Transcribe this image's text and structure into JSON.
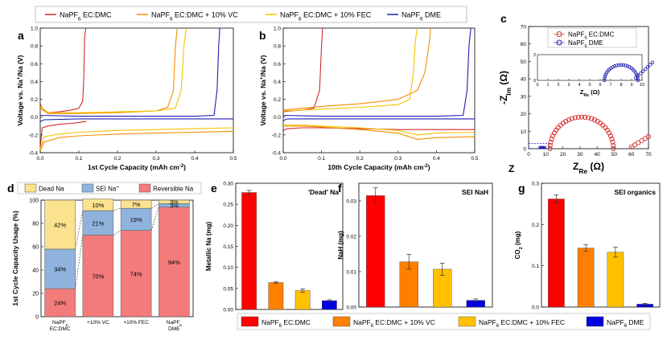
{
  "figure": {
    "colors": {
      "ecdmc": "#d62728",
      "vc": "#f28e00",
      "fec": "#f5c400",
      "dme": "#1f1fb4",
      "dead": "#fbe28f",
      "sei": "#8fb3dc",
      "rev": "#f47b7b",
      "bar_red": "#ff0000",
      "bar_orange": "#ff7f00",
      "bar_yellow": "#ffc000",
      "bar_blue": "#0000e0"
    },
    "top_legend": {
      "items": [
        {
          "label": "NaPF",
          "sub": "6",
          "rest": " EC:DMC"
        },
        {
          "label": "NaPF",
          "sub": "6",
          "rest": " EC:DMC + 10% VC"
        },
        {
          "label": "NaPF",
          "sub": "6",
          "rest": " EC:DMC + 10% FEC"
        },
        {
          "label": "NaPF",
          "sub": "6",
          "rest": " DME"
        }
      ]
    },
    "bottom_legend": {
      "items": [
        {
          "label": "NaPF",
          "sub": "6",
          "rest": " EC:DMC"
        },
        {
          "label": "NaPF",
          "sub": "6",
          "rest": " EC:DMC + 10% VC"
        },
        {
          "label": "NaPF",
          "sub": "6",
          "rest": " EC:DMC + 10% FEC"
        },
        {
          "label": "NaPF",
          "sub": "6",
          "rest": " DME"
        }
      ]
    }
  },
  "chart_data": [
    {
      "panel": "a",
      "type": "line",
      "xlabel": "1st Cycle Capacity (mAh cm",
      "xlabel_sup": "-2",
      "xlabel_end": ")",
      "ylabel": "Voltage vs. Na",
      "ylabel_sup": "+",
      "ylabel_end": "/Na (V)",
      "xlim": [
        0,
        0.5
      ],
      "ylim": [
        -0.4,
        1.0
      ],
      "xticks": [
        "0.0",
        "0.1",
        "0.2",
        "0.3",
        "0.4",
        "0.5"
      ],
      "yticks": [
        "-0.4",
        "-0.2",
        "0.0",
        "0.2",
        "0.4",
        "0.6",
        "0.8",
        "1.0"
      ],
      "series": [
        {
          "name": "NaPF6 EC:DMC",
          "color": "#d62728",
          "x": [
            0,
            0.005,
            0.02,
            0.05,
            0.08,
            0.1,
            0.115,
            0.12
          ],
          "y": [
            -0.35,
            -0.12,
            -0.1,
            -0.08,
            -0.07,
            -0.06,
            -0.05,
            -0.05
          ],
          "x2": [
            0,
            0.005,
            0.02,
            0.05,
            0.08,
            0.1,
            0.11,
            0.113,
            0.115,
            0.118
          ],
          "y2": [
            0.15,
            0.1,
            0.05,
            0.06,
            0.08,
            0.1,
            0.18,
            0.45,
            0.9,
            1.0
          ]
        },
        {
          "name": "NaPF6 EC:DMC + 10% VC",
          "color": "#f28e00",
          "x": [
            0,
            0.01,
            0.05,
            0.1,
            0.2,
            0.3,
            0.4,
            0.5
          ],
          "y": [
            -0.38,
            -0.28,
            -0.23,
            -0.21,
            -0.19,
            -0.18,
            -0.17,
            -0.16
          ],
          "x2": [
            0,
            0.02,
            0.1,
            0.2,
            0.3,
            0.33,
            0.345,
            0.35,
            0.355
          ],
          "y2": [
            0.1,
            0.04,
            0.04,
            0.05,
            0.07,
            0.11,
            0.3,
            0.8,
            1.0
          ]
        },
        {
          "name": "NaPF6 EC:DMC + 10% FEC",
          "color": "#f5c400",
          "x": [
            0,
            0.01,
            0.05,
            0.1,
            0.2,
            0.3,
            0.4,
            0.5
          ],
          "y": [
            -0.36,
            -0.22,
            -0.19,
            -0.17,
            -0.15,
            -0.14,
            -0.13,
            -0.12
          ],
          "x2": [
            0,
            0.02,
            0.1,
            0.2,
            0.3,
            0.35,
            0.365,
            0.372,
            0.378
          ],
          "y2": [
            0.12,
            0.05,
            0.05,
            0.06,
            0.07,
            0.1,
            0.3,
            0.8,
            1.0
          ]
        },
        {
          "name": "NaPF6 DME",
          "color": "#1f1fb4",
          "x": [
            0,
            0.01,
            0.1,
            0.2,
            0.3,
            0.4,
            0.5
          ],
          "y": [
            -0.05,
            -0.03,
            -0.02,
            -0.02,
            -0.02,
            -0.02,
            -0.02
          ],
          "x2": [
            0,
            0.1,
            0.2,
            0.3,
            0.4,
            0.45,
            0.458,
            0.462,
            0.465
          ],
          "y2": [
            0.02,
            0.01,
            0.01,
            0.01,
            0.01,
            0.02,
            0.3,
            0.8,
            1.0
          ]
        }
      ]
    },
    {
      "panel": "b",
      "type": "line",
      "xlabel": "10th Cycle Capacity (mAh cm",
      "xlabel_sup": "-2",
      "xlabel_end": ")",
      "ylabel": "Voltage vs. Na",
      "ylabel_sup": "+",
      "ylabel_end": "/Na (V)",
      "xlim": [
        0,
        0.5
      ],
      "ylim": [
        -0.4,
        1.0
      ],
      "xticks": [
        "0.0",
        "0.1",
        "0.2",
        "0.3",
        "0.4",
        "0.5"
      ],
      "yticks": [
        "-0.4",
        "-0.2",
        "0.0",
        "0.2",
        "0.4",
        "0.6",
        "0.8",
        "1.0"
      ],
      "series": [
        {
          "name": "NaPF6 EC:DMC",
          "color": "#d62728",
          "x": [
            0,
            0.01,
            0.05,
            0.1,
            0.2,
            0.3,
            0.4,
            0.5
          ],
          "y": [
            -0.15,
            -0.13,
            -0.12,
            -0.12,
            -0.13,
            -0.14,
            -0.14,
            -0.14
          ],
          "x2": [
            0,
            0.02,
            0.05,
            0.08,
            0.095,
            0.1,
            0.103
          ],
          "y2": [
            0.06,
            0.07,
            0.08,
            0.1,
            0.3,
            0.8,
            1.0
          ]
        },
        {
          "name": "NaPF6 EC:DMC + 10% VC",
          "color": "#f28e00",
          "x": [
            0,
            0.05,
            0.1,
            0.2,
            0.3,
            0.35,
            0.4,
            0.5
          ],
          "y": [
            -0.1,
            -0.1,
            -0.11,
            -0.14,
            -0.18,
            -0.25,
            -0.23,
            -0.22
          ],
          "x2": [
            0,
            0.05,
            0.1,
            0.2,
            0.3,
            0.35,
            0.37,
            0.38,
            0.385
          ],
          "y2": [
            0.08,
            0.1,
            0.12,
            0.15,
            0.2,
            0.3,
            0.5,
            0.8,
            1.0
          ]
        },
        {
          "name": "NaPF6 EC:DMC + 10% FEC",
          "color": "#f5c400",
          "x": [
            0,
            0.05,
            0.1,
            0.2,
            0.3,
            0.35,
            0.4,
            0.5
          ],
          "y": [
            -0.09,
            -0.09,
            -0.1,
            -0.12,
            -0.15,
            -0.2,
            -0.18,
            -0.17
          ],
          "x2": [
            0,
            0.05,
            0.1,
            0.2,
            0.3,
            0.33,
            0.34,
            0.345,
            0.35
          ],
          "y2": [
            0.07,
            0.08,
            0.09,
            0.11,
            0.14,
            0.2,
            0.5,
            0.85,
            1.0
          ]
        },
        {
          "name": "NaPF6 DME",
          "color": "#1f1fb4",
          "x": [
            0,
            0.01,
            0.1,
            0.2,
            0.3,
            0.4,
            0.5
          ],
          "y": [
            -0.04,
            -0.02,
            -0.02,
            -0.02,
            -0.02,
            -0.02,
            -0.02
          ],
          "x2": [
            0,
            0.1,
            0.2,
            0.3,
            0.4,
            0.47,
            0.48,
            0.485,
            0.49
          ],
          "y2": [
            0.02,
            0.01,
            0.01,
            0.01,
            0.01,
            0.02,
            0.3,
            0.8,
            1.0
          ]
        }
      ]
    },
    {
      "panel": "c",
      "type": "scatter",
      "xlabel": "Z",
      "xlabel_sub": "Re",
      "xlabel_end": " (Ω)",
      "ylabel": "-Z",
      "ylabel_sub": "Im",
      "ylabel_end": " (Ω)",
      "outside_label": "Z",
      "xlim": [
        0,
        70
      ],
      "ylim": [
        0,
        70
      ],
      "xticks": [
        "0",
        "10",
        "20",
        "30",
        "40",
        "50",
        "60",
        "70"
      ],
      "yticks": [
        "0",
        "10",
        "20",
        "30",
        "40",
        "50",
        "60",
        "70"
      ],
      "legend": [
        "NaPF6 EC:DMC",
        "NaPF6 DME"
      ],
      "series": [
        {
          "name": "NaPF6 EC:DMC",
          "color": "#d62728",
          "center": 31,
          "radius": 18.5,
          "tail_start": 60,
          "tail_end": 70
        },
        {
          "name": "NaPF6 DME",
          "color": "#1f1fb4",
          "center": 8,
          "radius": 1.6,
          "tail_start": 9.4,
          "tail_end": 11
        }
      ],
      "inset": {
        "xlabel": "Z",
        "xlabel_sub": "Re",
        "xlabel_end": " (Ω)",
        "xlim": [
          0,
          10
        ],
        "ylim": [
          0,
          2
        ],
        "xticks": [
          "0",
          "1",
          "2",
          "3",
          "4",
          "5",
          "6",
          "7",
          "8",
          "9",
          "10"
        ],
        "yticks": [
          "0",
          "2"
        ]
      }
    },
    {
      "panel": "d",
      "type": "bar",
      "stacked": true,
      "ylabel": "1st Cycle Capacity Usage (%)",
      "ylim": [
        0,
        100
      ],
      "yticks": [
        "0",
        "20",
        "40",
        "60",
        "80",
        "100"
      ],
      "categories": [
        {
          "line1": "NaPF",
          "sub": "6",
          "line2": "EC:DMC"
        },
        {
          "line1": "+10% VC",
          "sub": "",
          "line2": ""
        },
        {
          "line1": "+10% FEC",
          "sub": "",
          "line2": ""
        },
        {
          "line1": "NaPF",
          "sub": "6",
          "line2": "DME"
        }
      ],
      "legend": [
        "Dead Na",
        "SEI Na",
        "Reversible Na"
      ],
      "legend_sei_sup": "+",
      "series": [
        {
          "name": "Reversible Na",
          "values": [
            24,
            70,
            74,
            94
          ],
          "labels": [
            "24%",
            "70%",
            "74%",
            "94%"
          ]
        },
        {
          "name": "SEI Na+",
          "values": [
            34,
            21,
            19,
            3
          ],
          "labels": [
            "34%",
            "21%",
            "19%",
            "3%"
          ]
        },
        {
          "name": "Dead Na",
          "values": [
            42,
            10,
            7,
            3
          ],
          "labels": [
            "42%",
            "10%",
            "7%",
            "3%"
          ]
        }
      ]
    },
    {
      "panel": "e",
      "type": "bar",
      "title": "'Dead' Na",
      "ylabel": "Metallic Na (mg)",
      "ylim": [
        0,
        0.3
      ],
      "yticks": [
        "0.00",
        "0.05",
        "0.10",
        "0.15",
        "0.20",
        "0.25",
        "0.30"
      ],
      "categories": [
        "NaPF6 EC:DMC",
        "NaPF6 EC:DMC + 10% VC",
        "NaPF6 EC:DMC + 10% FEC",
        "NaPF6 DME"
      ],
      "values": [
        0.278,
        0.064,
        0.045,
        0.021
      ],
      "errors": [
        0.005,
        0.002,
        0.004,
        0.002
      ]
    },
    {
      "panel": "f",
      "type": "bar",
      "title": "SEI NaH",
      "ylabel": "NaH (mg)",
      "ylim": [
        0,
        0.035
      ],
      "yticks": [
        "0.00",
        "0.01",
        "0.02",
        "0.03"
      ],
      "categories": [
        "NaPF6 EC:DMC",
        "NaPF6 EC:DMC + 10% VC",
        "NaPF6 EC:DMC + 10% FEC",
        "NaPF6 DME"
      ],
      "values": [
        0.0315,
        0.0128,
        0.0107,
        0.0019
      ],
      "errors": [
        0.0022,
        0.0021,
        0.0017,
        0.0004
      ]
    },
    {
      "panel": "g",
      "type": "bar",
      "title": "SEI organics",
      "ylabel": "CO",
      "ylabel_sub": "2",
      "ylabel_end": " (mg)",
      "ylim": [
        0,
        0.3
      ],
      "yticks": [
        "0.0",
        "0.1",
        "0.2",
        "0.3"
      ],
      "categories": [
        "NaPF6 EC:DMC",
        "NaPF6 EC:DMC + 10% VC",
        "NaPF6 EC:DMC + 10% FEC",
        "NaPF6 DME"
      ],
      "values": [
        0.262,
        0.143,
        0.133,
        0.007
      ],
      "errors": [
        0.01,
        0.008,
        0.012,
        0.002
      ]
    }
  ],
  "panel_letters": [
    "a",
    "b",
    "c",
    "d",
    "e",
    "f",
    "g"
  ]
}
